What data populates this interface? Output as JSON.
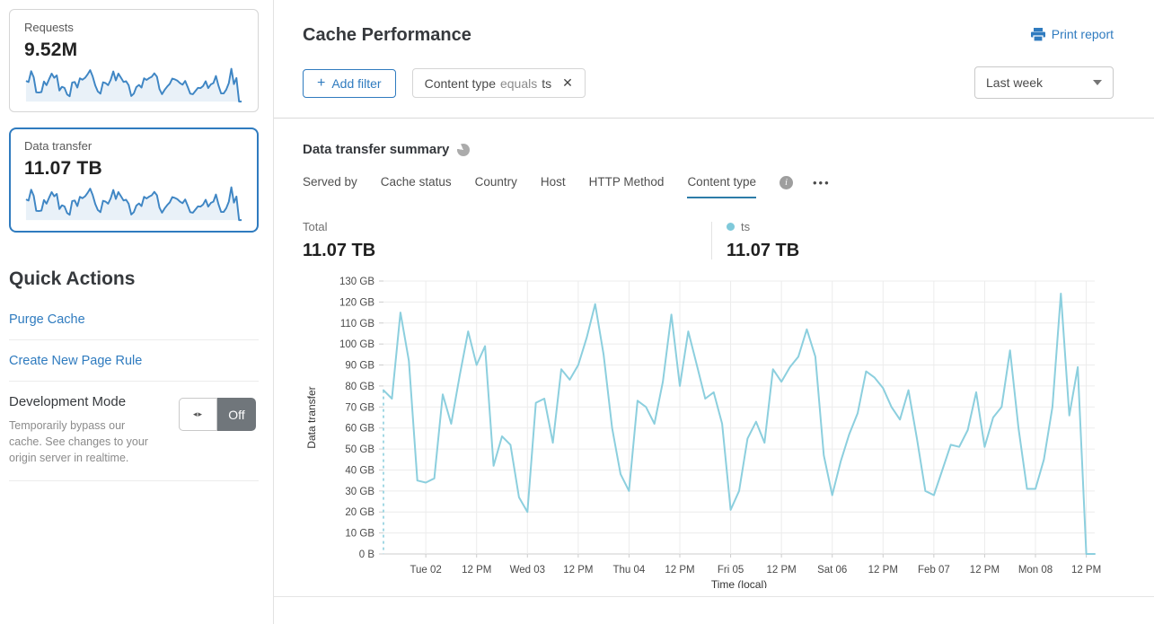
{
  "sidebar": {
    "cards": [
      {
        "label": "Requests",
        "value": "9.52M"
      },
      {
        "label": "Data transfer",
        "value": "11.07 TB"
      }
    ],
    "quick_actions_title": "Quick Actions",
    "links": [
      {
        "label": "Purge Cache"
      },
      {
        "label": "Create New Page Rule"
      }
    ],
    "dev_mode": {
      "title": "Development Mode",
      "description": "Temporarily bypass our cache. See changes to your origin server in realtime.",
      "toggle_label": "Off"
    }
  },
  "header": {
    "title": "Cache Performance",
    "print_label": "Print report",
    "add_filter_label": "Add filter",
    "filter_chip": {
      "field": "Content type",
      "operator": "equals",
      "value": "ts"
    },
    "time_range": "Last week"
  },
  "summary": {
    "title": "Data transfer summary",
    "tabs": [
      {
        "label": "Served by"
      },
      {
        "label": "Cache status"
      },
      {
        "label": "Country"
      },
      {
        "label": "Host"
      },
      {
        "label": "HTTP Method"
      },
      {
        "label": "Content type",
        "active": true
      }
    ],
    "more_label": "•••",
    "total_label": "Total",
    "total_value": "11.07 TB",
    "legend": {
      "name": "ts",
      "value": "11.07 TB",
      "color": "#7fc9da"
    }
  },
  "chart_data": {
    "type": "line",
    "title": "Data transfer summary",
    "xlabel": "Time (local)",
    "ylabel": "Data transfer",
    "unit": "GB",
    "ylim": [
      0,
      130
    ],
    "y_tick_labels": [
      "130 GB",
      "120 GB",
      "110 GB",
      "100 GB",
      "90 GB",
      "80 GB",
      "70 GB",
      "60 GB",
      "50 GB",
      "40 GB",
      "30 GB",
      "20 GB",
      "10 GB",
      "0 B"
    ],
    "x_tick_labels": [
      "Tue 02",
      "12 PM",
      "Wed 03",
      "12 PM",
      "Thu 04",
      "12 PM",
      "Fri 05",
      "12 PM",
      "Sat 06",
      "12 PM",
      "Feb 07",
      "12 PM",
      "Mon 08",
      "12 PM"
    ],
    "x_tick_hours": [
      10,
      22,
      34,
      46,
      58,
      70,
      82,
      94,
      106,
      118,
      130,
      142,
      154,
      166
    ],
    "total_hours": 168,
    "sample_step_hours": 2,
    "grid": true,
    "start_dashed": true,
    "legend_position": "top-right",
    "series": [
      {
        "name": "ts",
        "color": "#8ccfde",
        "values": [
          78,
          74,
          115,
          92,
          35,
          34,
          36,
          76,
          62,
          85,
          106,
          90,
          99,
          42,
          56,
          52,
          27,
          20,
          72,
          74,
          53,
          88,
          83,
          90,
          103,
          119,
          95,
          60,
          38,
          30,
          73,
          70,
          62,
          82,
          114,
          80,
          106,
          90,
          74,
          77,
          62,
          21,
          30,
          55,
          63,
          53,
          88,
          82,
          89,
          94,
          107,
          94,
          47,
          28,
          44,
          57,
          67,
          87,
          84,
          79,
          70,
          64,
          78,
          55,
          30,
          28,
          40,
          52,
          51,
          59,
          77,
          51,
          65,
          70,
          97,
          60,
          31,
          31,
          45,
          70,
          124,
          66,
          89,
          0,
          0
        ]
      }
    ]
  },
  "colors": {
    "accent_blue": "#2f7bbf",
    "chart_line": "#8ccfde",
    "spark_line": "#3f86c4",
    "spark_fill": "#e9f1f8",
    "tab_underline": "#2d7ca8",
    "toggle_off_bg": "#70767b",
    "grid_line": "#ececec",
    "axis_line": "#cccccc"
  }
}
